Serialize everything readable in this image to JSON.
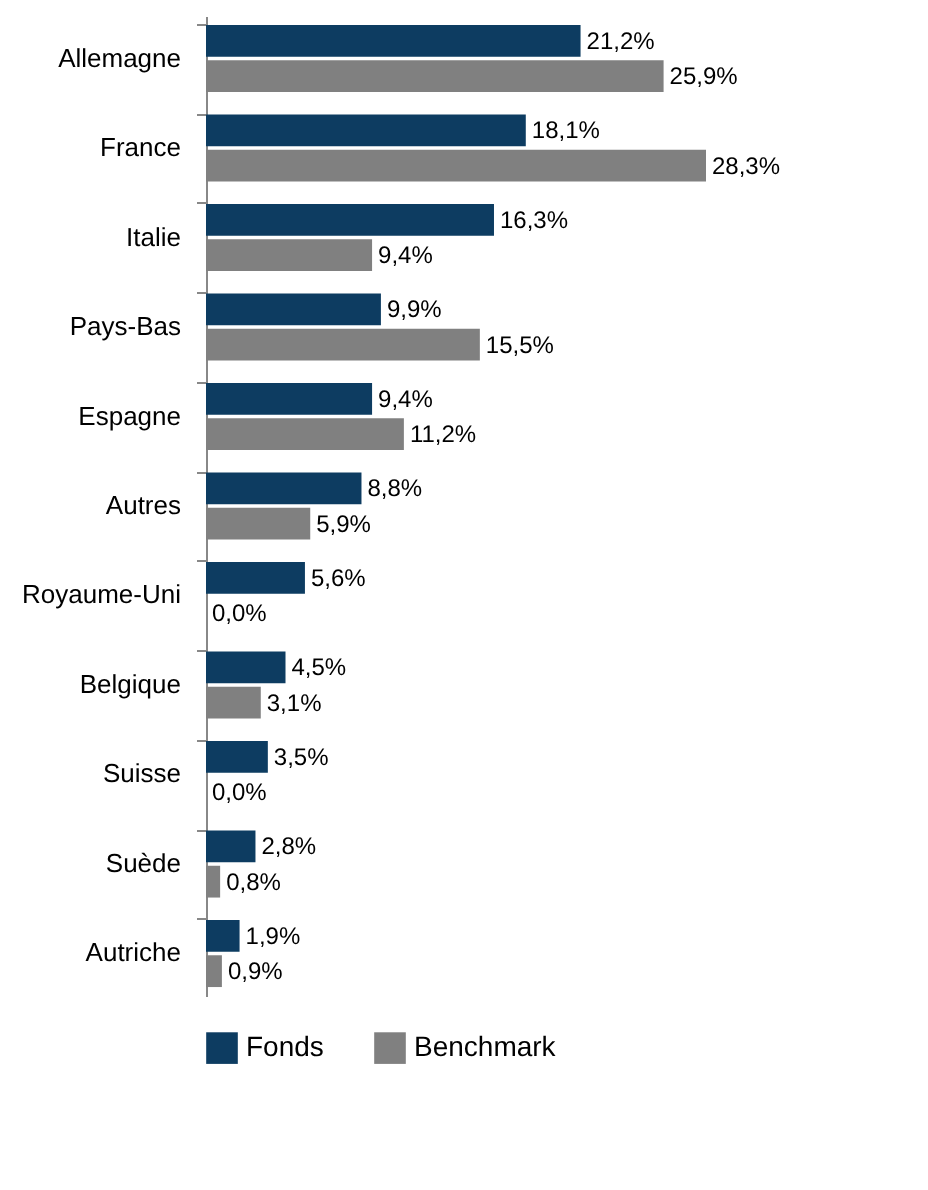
{
  "chart_data": {
    "type": "bar",
    "orientation": "horizontal",
    "categories": [
      "Allemagne",
      "France",
      "Italie",
      "Pays-Bas",
      "Espagne",
      "Autres",
      "Royaume-Uni",
      "Belgique",
      "Suisse",
      "Suède",
      "Autriche"
    ],
    "series": [
      {
        "name": "Fonds",
        "color": "#0d3c61",
        "values": [
          21.2,
          18.1,
          16.3,
          9.9,
          9.4,
          8.8,
          5.6,
          4.5,
          3.5,
          2.8,
          1.9
        ],
        "value_labels": [
          "21,2%",
          "18,1%",
          "16,3%",
          "9,9%",
          "9,4%",
          "8,8%",
          "5,6%",
          "4,5%",
          "3,5%",
          "2,8%",
          "1,9%"
        ]
      },
      {
        "name": "Benchmark",
        "color": "#808080",
        "values": [
          25.9,
          28.3,
          9.4,
          15.5,
          11.2,
          5.9,
          0.0,
          3.1,
          0.0,
          0.8,
          0.9
        ],
        "value_labels": [
          "25,9%",
          "28,3%",
          "9,4%",
          "15,5%",
          "11,2%",
          "5,9%",
          "0,0%",
          "3,1%",
          "0,0%",
          "0,8%",
          "0,9%"
        ]
      }
    ],
    "tick_labels": "y",
    "grid": false,
    "legend": "bottom"
  }
}
